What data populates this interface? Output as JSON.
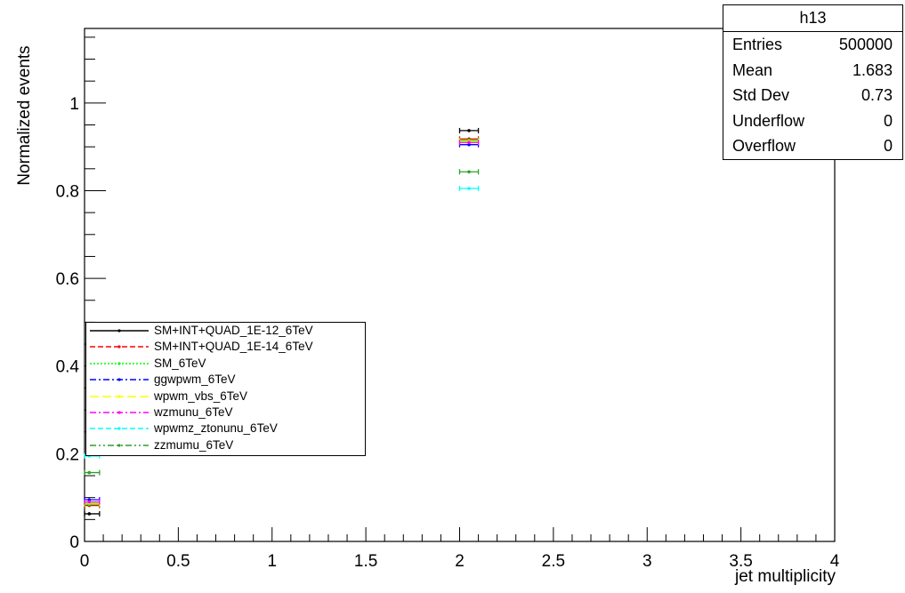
{
  "chart_data": {
    "type": "scatter",
    "title": "",
    "xlabel": "jet multiplicity",
    "ylabel": "Normalized events",
    "xlim": [
      0,
      4
    ],
    "ylim": [
      0,
      1.17
    ],
    "x_ticks": [
      "0",
      "0.5",
      "1",
      "1.5",
      "2",
      "2.5",
      "3",
      "3.5",
      "4"
    ],
    "y_ticks": [
      "0",
      "0.2",
      "0.4",
      "0.6",
      "0.8",
      "1"
    ],
    "grid": false,
    "legend_position": "bottom-left",
    "series": [
      {
        "name": "SM+INT+QUAD_1E-12_6TeV",
        "color": "#000000",
        "dash": "solid",
        "x": [
          0,
          2
        ],
        "y": [
          0.063,
          0.937
        ]
      },
      {
        "name": "SM+INT+QUAD_1E-14_6TeV",
        "color": "#ff0000",
        "dash": "dashed",
        "x": [
          0,
          2
        ],
        "y": [
          0.082,
          0.918
        ]
      },
      {
        "name": "SM_6TeV",
        "color": "#00ff00",
        "dash": "dotted",
        "x": [
          0,
          2
        ],
        "y": [
          0.085,
          0.915
        ]
      },
      {
        "name": "ggwpwm_6TeV",
        "color": "#0000ff",
        "dash": "dashdot",
        "x": [
          0,
          2
        ],
        "y": [
          0.095,
          0.905
        ]
      },
      {
        "name": "wpwm_vbs_6TeV",
        "color": "#ffff00",
        "dash": "longdash",
        "x": [
          0,
          2
        ],
        "y": [
          0.088,
          0.912
        ]
      },
      {
        "name": "wzmunu_6TeV",
        "color": "#ff00ff",
        "dash": "dashdot",
        "x": [
          0,
          2
        ],
        "y": [
          0.09,
          0.91
        ]
      },
      {
        "name": "wpwmz_ztonunu_6TeV",
        "color": "#00ffff",
        "dash": "dashed",
        "x": [
          0,
          2
        ],
        "y": [
          0.195,
          0.805
        ]
      },
      {
        "name": "zzmumu_6TeV",
        "color": "#2ca02c",
        "dash": "dashdotdot",
        "x": [
          0,
          2
        ],
        "y": [
          0.157,
          0.843
        ]
      }
    ],
    "stats_box": {
      "title": "h13",
      "rows": [
        {
          "label": "Entries",
          "value": "500000"
        },
        {
          "label": "Mean",
          "value": "1.683"
        },
        {
          "label": "Std Dev",
          "value": "0.73"
        },
        {
          "label": "Underflow",
          "value": "0"
        },
        {
          "label": "Overflow",
          "value": "0"
        }
      ]
    }
  }
}
